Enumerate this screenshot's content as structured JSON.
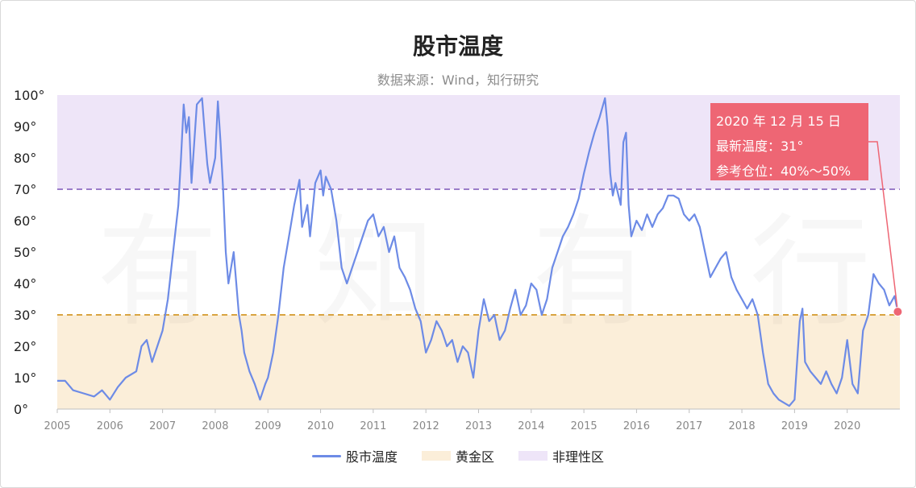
{
  "chart_data": {
    "type": "line",
    "title": "股市温度",
    "subtitle": "数据来源：Wind，知行研究",
    "watermark": "有知有行",
    "y_axis": {
      "range": [
        0,
        100
      ],
      "ticks": [
        "0°",
        "10°",
        "20°",
        "30°",
        "40°",
        "50°",
        "60°",
        "70°",
        "80°",
        "90°",
        "100°"
      ]
    },
    "x_axis": {
      "range": [
        2005,
        2021
      ],
      "ticks": [
        "2005",
        "2006",
        "2007",
        "2008",
        "2009",
        "2010",
        "2011",
        "2012",
        "2013",
        "2014",
        "2015",
        "2016",
        "2017",
        "2018",
        "2019",
        "2020"
      ]
    },
    "zones": [
      {
        "name": "黄金区",
        "from": 0,
        "to": 30,
        "color": "#fbeed9",
        "line_color": "#d9a441"
      },
      {
        "name": "非理性区",
        "from": 70,
        "to": 100,
        "color": "#eee5f8",
        "line_color": "#9b7dc9"
      }
    ],
    "series": [
      {
        "name": "股市温度",
        "color": "#6d8be6",
        "points": [
          [
            2005.0,
            9
          ],
          [
            2005.15,
            9
          ],
          [
            2005.3,
            6
          ],
          [
            2005.5,
            5
          ],
          [
            2005.7,
            4
          ],
          [
            2005.85,
            6
          ],
          [
            2006.0,
            3
          ],
          [
            2006.15,
            7
          ],
          [
            2006.3,
            10
          ],
          [
            2006.5,
            12
          ],
          [
            2006.6,
            20
          ],
          [
            2006.7,
            22
          ],
          [
            2006.8,
            15
          ],
          [
            2006.9,
            20
          ],
          [
            2007.0,
            25
          ],
          [
            2007.1,
            35
          ],
          [
            2007.2,
            50
          ],
          [
            2007.3,
            65
          ],
          [
            2007.35,
            80
          ],
          [
            2007.4,
            97
          ],
          [
            2007.45,
            88
          ],
          [
            2007.5,
            93
          ],
          [
            2007.55,
            72
          ],
          [
            2007.65,
            97
          ],
          [
            2007.75,
            99
          ],
          [
            2007.8,
            88
          ],
          [
            2007.85,
            78
          ],
          [
            2007.9,
            72
          ],
          [
            2008.0,
            80
          ],
          [
            2008.05,
            98
          ],
          [
            2008.1,
            85
          ],
          [
            2008.15,
            70
          ],
          [
            2008.2,
            50
          ],
          [
            2008.25,
            40
          ],
          [
            2008.35,
            50
          ],
          [
            2008.45,
            30
          ],
          [
            2008.5,
            25
          ],
          [
            2008.55,
            18
          ],
          [
            2008.65,
            12
          ],
          [
            2008.75,
            8
          ],
          [
            2008.85,
            3
          ],
          [
            2008.95,
            8
          ],
          [
            2009.0,
            10
          ],
          [
            2009.1,
            18
          ],
          [
            2009.2,
            30
          ],
          [
            2009.3,
            45
          ],
          [
            2009.4,
            55
          ],
          [
            2009.5,
            65
          ],
          [
            2009.6,
            73
          ],
          [
            2009.65,
            58
          ],
          [
            2009.75,
            65
          ],
          [
            2009.8,
            55
          ],
          [
            2009.9,
            72
          ],
          [
            2010.0,
            76
          ],
          [
            2010.05,
            68
          ],
          [
            2010.1,
            74
          ],
          [
            2010.2,
            70
          ],
          [
            2010.3,
            60
          ],
          [
            2010.4,
            45
          ],
          [
            2010.5,
            40
          ],
          [
            2010.6,
            45
          ],
          [
            2010.7,
            50
          ],
          [
            2010.8,
            55
          ],
          [
            2010.9,
            60
          ],
          [
            2011.0,
            62
          ],
          [
            2011.1,
            55
          ],
          [
            2011.2,
            58
          ],
          [
            2011.3,
            50
          ],
          [
            2011.4,
            55
          ],
          [
            2011.5,
            45
          ],
          [
            2011.6,
            42
          ],
          [
            2011.7,
            38
          ],
          [
            2011.8,
            32
          ],
          [
            2011.9,
            28
          ],
          [
            2012.0,
            18
          ],
          [
            2012.1,
            22
          ],
          [
            2012.2,
            28
          ],
          [
            2012.3,
            25
          ],
          [
            2012.4,
            20
          ],
          [
            2012.5,
            22
          ],
          [
            2012.6,
            15
          ],
          [
            2012.7,
            20
          ],
          [
            2012.8,
            18
          ],
          [
            2012.9,
            10
          ],
          [
            2013.0,
            25
          ],
          [
            2013.1,
            35
          ],
          [
            2013.2,
            28
          ],
          [
            2013.3,
            30
          ],
          [
            2013.4,
            22
          ],
          [
            2013.5,
            25
          ],
          [
            2013.6,
            32
          ],
          [
            2013.7,
            38
          ],
          [
            2013.8,
            30
          ],
          [
            2013.9,
            33
          ],
          [
            2014.0,
            40
          ],
          [
            2014.1,
            38
          ],
          [
            2014.2,
            30
          ],
          [
            2014.3,
            35
          ],
          [
            2014.4,
            45
          ],
          [
            2014.5,
            50
          ],
          [
            2014.6,
            55
          ],
          [
            2014.7,
            58
          ],
          [
            2014.8,
            62
          ],
          [
            2014.9,
            67
          ],
          [
            2015.0,
            75
          ],
          [
            2015.1,
            82
          ],
          [
            2015.2,
            88
          ],
          [
            2015.3,
            93
          ],
          [
            2015.4,
            99
          ],
          [
            2015.45,
            90
          ],
          [
            2015.5,
            75
          ],
          [
            2015.55,
            68
          ],
          [
            2015.6,
            72
          ],
          [
            2015.7,
            65
          ],
          [
            2015.75,
            85
          ],
          [
            2015.8,
            88
          ],
          [
            2015.85,
            65
          ],
          [
            2015.9,
            55
          ],
          [
            2016.0,
            60
          ],
          [
            2016.1,
            57
          ],
          [
            2016.2,
            62
          ],
          [
            2016.3,
            58
          ],
          [
            2016.4,
            62
          ],
          [
            2016.5,
            64
          ],
          [
            2016.6,
            68
          ],
          [
            2016.7,
            68
          ],
          [
            2016.8,
            67
          ],
          [
            2016.9,
            62
          ],
          [
            2017.0,
            60
          ],
          [
            2017.1,
            62
          ],
          [
            2017.2,
            58
          ],
          [
            2017.3,
            50
          ],
          [
            2017.4,
            42
          ],
          [
            2017.5,
            45
          ],
          [
            2017.6,
            48
          ],
          [
            2017.7,
            50
          ],
          [
            2017.8,
            42
          ],
          [
            2017.9,
            38
          ],
          [
            2018.0,
            35
          ],
          [
            2018.1,
            32
          ],
          [
            2018.2,
            35
          ],
          [
            2018.3,
            30
          ],
          [
            2018.4,
            18
          ],
          [
            2018.5,
            8
          ],
          [
            2018.6,
            5
          ],
          [
            2018.7,
            3
          ],
          [
            2018.8,
            2
          ],
          [
            2018.9,
            1
          ],
          [
            2019.0,
            3
          ],
          [
            2019.1,
            28
          ],
          [
            2019.15,
            32
          ],
          [
            2019.2,
            15
          ],
          [
            2019.3,
            12
          ],
          [
            2019.4,
            10
          ],
          [
            2019.5,
            8
          ],
          [
            2019.6,
            12
          ],
          [
            2019.7,
            8
          ],
          [
            2019.8,
            5
          ],
          [
            2019.9,
            10
          ],
          [
            2020.0,
            22
          ],
          [
            2020.1,
            8
          ],
          [
            2020.2,
            5
          ],
          [
            2020.3,
            25
          ],
          [
            2020.4,
            30
          ],
          [
            2020.5,
            43
          ],
          [
            2020.6,
            40
          ],
          [
            2020.7,
            38
          ],
          [
            2020.8,
            33
          ],
          [
            2020.9,
            36
          ],
          [
            2020.96,
            31
          ]
        ]
      }
    ],
    "annotation": {
      "date": "2020 年 12 月 15 日",
      "temp_label": "最新温度：31°",
      "position_label": "参考仓位：40%～50%",
      "point": [
        2020.96,
        31
      ],
      "color": "#ee6674"
    },
    "legend": [
      {
        "label": "股市温度",
        "kind": "line",
        "color": "#6d8be6"
      },
      {
        "label": "黄金区",
        "kind": "box",
        "color": "#fbeed9"
      },
      {
        "label": "非理性区",
        "kind": "box",
        "color": "#eee5f8"
      }
    ]
  }
}
